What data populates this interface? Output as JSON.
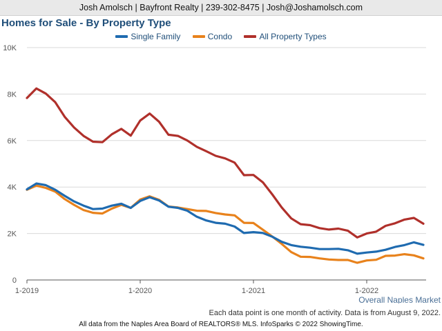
{
  "header": {
    "contact": "Josh Amolsch | Bayfront Realty | 239-302-8475 | Josh@Joshamolsch.com"
  },
  "chart_data": {
    "type": "line",
    "title": "Homes for Sale - By Property Type",
    "subtitle": "Overall Naples Market",
    "xlabel": "",
    "ylabel": "",
    "ylim": [
      0,
      10000
    ],
    "yticks": [
      0,
      2000,
      4000,
      6000,
      8000,
      10000
    ],
    "ytick_labels": [
      "0",
      "2K",
      "4K",
      "6K",
      "8K",
      "10K"
    ],
    "xticks": [
      "2019-01",
      "2020-01",
      "2021-01",
      "2022-01"
    ],
    "xtick_labels": [
      "1-2019",
      "1-2020",
      "1-2021",
      "1-2022"
    ],
    "grid": true,
    "legend_position": "top-center",
    "x": [
      "2019-01",
      "2019-02",
      "2019-03",
      "2019-04",
      "2019-05",
      "2019-06",
      "2019-07",
      "2019-08",
      "2019-09",
      "2019-10",
      "2019-11",
      "2019-12",
      "2020-01",
      "2020-02",
      "2020-03",
      "2020-04",
      "2020-05",
      "2020-06",
      "2020-07",
      "2020-08",
      "2020-09",
      "2020-10",
      "2020-11",
      "2020-12",
      "2021-01",
      "2021-02",
      "2021-03",
      "2021-04",
      "2021-05",
      "2021-06",
      "2021-07",
      "2021-08",
      "2021-09",
      "2021-10",
      "2021-11",
      "2021-12",
      "2022-01",
      "2022-02",
      "2022-03",
      "2022-04",
      "2022-05",
      "2022-06",
      "2022-07"
    ],
    "series": [
      {
        "name": "Single Family",
        "color": "#1f6bb0",
        "values": [
          3900,
          4150,
          4080,
          3880,
          3620,
          3380,
          3200,
          3050,
          3070,
          3200,
          3280,
          3100,
          3400,
          3560,
          3420,
          3150,
          3100,
          2980,
          2720,
          2560,
          2460,
          2420,
          2300,
          2020,
          2060,
          2020,
          1860,
          1640,
          1500,
          1430,
          1390,
          1330,
          1330,
          1340,
          1280,
          1130,
          1180,
          1220,
          1300,
          1420,
          1500,
          1620,
          1510
        ]
      },
      {
        "name": "Condo",
        "color": "#e8821c",
        "values": [
          3880,
          4060,
          3960,
          3800,
          3480,
          3230,
          3010,
          2890,
          2860,
          3070,
          3230,
          3100,
          3460,
          3600,
          3450,
          3160,
          3120,
          3050,
          2980,
          2970,
          2880,
          2820,
          2780,
          2460,
          2450,
          2160,
          1870,
          1550,
          1200,
          1000,
          990,
          930,
          880,
          860,
          860,
          740,
          840,
          870,
          1040,
          1050,
          1110,
          1060,
          930
        ]
      },
      {
        "name": "All Property Types",
        "color": "#b0302b",
        "values": [
          7830,
          8240,
          8020,
          7650,
          7020,
          6560,
          6200,
          5950,
          5930,
          6270,
          6500,
          6210,
          6860,
          7160,
          6810,
          6250,
          6200,
          6000,
          5730,
          5540,
          5340,
          5230,
          5050,
          4510,
          4520,
          4200,
          3680,
          3120,
          2650,
          2400,
          2360,
          2230,
          2170,
          2210,
          2120,
          1830,
          2000,
          2080,
          2330,
          2440,
          2600,
          2670,
          2420
        ]
      }
    ]
  },
  "notes": {
    "source_line": "Each data point is one month of activity. Data is from August 9, 2022.",
    "footer": "All data from the Naples Area Board of REALTORS® MLS. InfoSparks © 2022 ShowingTime."
  }
}
